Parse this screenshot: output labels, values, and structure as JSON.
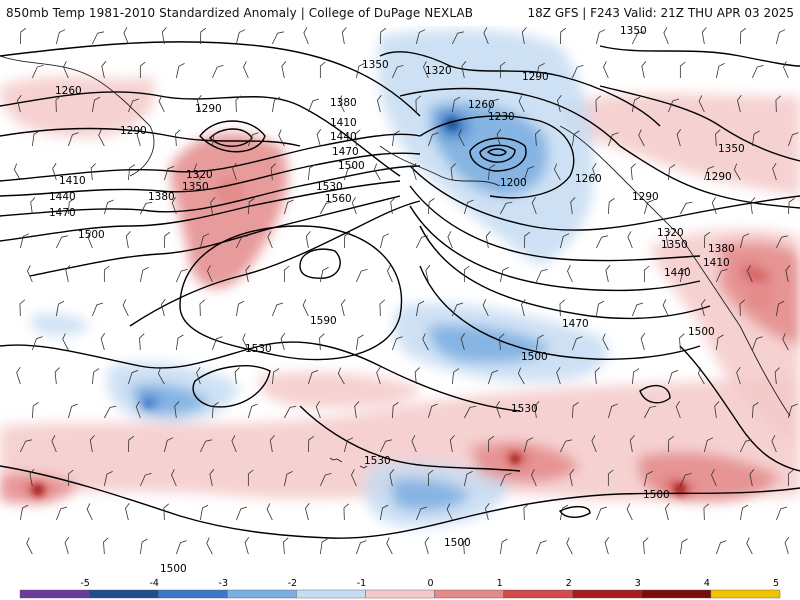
{
  "header": {
    "left": "850mb Temp 1981-2010 Standardized Anomaly | College of DuPage NEXLAB",
    "right": "18Z GFS | F243 Valid: 21Z THU APR 03 2025"
  },
  "colors": {
    "neg5": "#6a3d9a",
    "neg4": "#1f4e8c",
    "neg3": "#3a78c8",
    "neg2": "#7aaee0",
    "neg1": "#c6dcf2",
    "pos1": "#f4c9c9",
    "pos2": "#e48a8a",
    "pos3": "#d24c4c",
    "pos4": "#a51d1d",
    "pos5": "#7a0b0b",
    "pos6": "#f2c200"
  },
  "colorbar": {
    "ticks": [
      "-5",
      "-4",
      "-3",
      "-2",
      "-1",
      "0",
      "1",
      "2",
      "3",
      "4",
      "5"
    ]
  },
  "contours": [
    {
      "label": "1350"
    },
    {
      "label": "1260"
    },
    {
      "label": "1290"
    },
    {
      "label": "1290"
    },
    {
      "label": "1350"
    },
    {
      "label": "1320"
    },
    {
      "label": "1290"
    },
    {
      "label": "1260"
    },
    {
      "label": "1230"
    },
    {
      "label": "1380"
    },
    {
      "label": "1410"
    },
    {
      "label": "1440"
    },
    {
      "label": "1470"
    },
    {
      "label": "1500"
    },
    {
      "label": "1530"
    },
    {
      "label": "1560"
    },
    {
      "label": "1200"
    },
    {
      "label": "1260"
    },
    {
      "label": "1350"
    },
    {
      "label": "1290"
    },
    {
      "label": "1290"
    },
    {
      "label": "1320"
    },
    {
      "label": "1350"
    },
    {
      "label": "1380"
    },
    {
      "label": "1410"
    },
    {
      "label": "1440"
    },
    {
      "label": "1410"
    },
    {
      "label": "1440"
    },
    {
      "label": "1470"
    },
    {
      "label": "1500"
    },
    {
      "label": "1320"
    },
    {
      "label": "1350"
    },
    {
      "label": "1380"
    },
    {
      "label": "1590"
    },
    {
      "label": "1470"
    },
    {
      "label": "1500"
    },
    {
      "label": "1500"
    },
    {
      "label": "1530"
    },
    {
      "label": "1530"
    },
    {
      "label": "1530"
    },
    {
      "label": "1500"
    },
    {
      "label": "1500"
    },
    {
      "label": "1500"
    }
  ]
}
